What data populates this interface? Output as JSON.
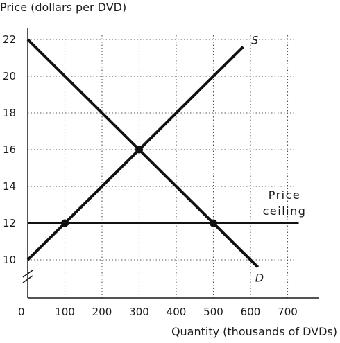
{
  "chart_data": {
    "type": "line",
    "title": "",
    "ylabel": "Price (dollars per DVD)",
    "xlabel": "Quantity (thousands of DVDs)",
    "origin_label": "0",
    "xlim": [
      0,
      750
    ],
    "ylim": [
      10,
      22
    ],
    "x_ticks": [
      100,
      200,
      300,
      400,
      500,
      600,
      700
    ],
    "y_ticks": [
      10,
      12,
      14,
      16,
      18,
      20,
      22
    ],
    "grid": true,
    "y_axis_break": true,
    "series": [
      {
        "name": "S",
        "x": [
          0,
          580
        ],
        "y": [
          10,
          21.6
        ]
      },
      {
        "name": "D",
        "x": [
          0,
          620
        ],
        "y": [
          22,
          9.6
        ]
      },
      {
        "name": "Price ceiling",
        "x": [
          0,
          730
        ],
        "y": [
          12,
          12
        ]
      }
    ],
    "points": [
      {
        "x": 100,
        "y": 12
      },
      {
        "x": 300,
        "y": 16
      },
      {
        "x": 500,
        "y": 12
      }
    ]
  }
}
